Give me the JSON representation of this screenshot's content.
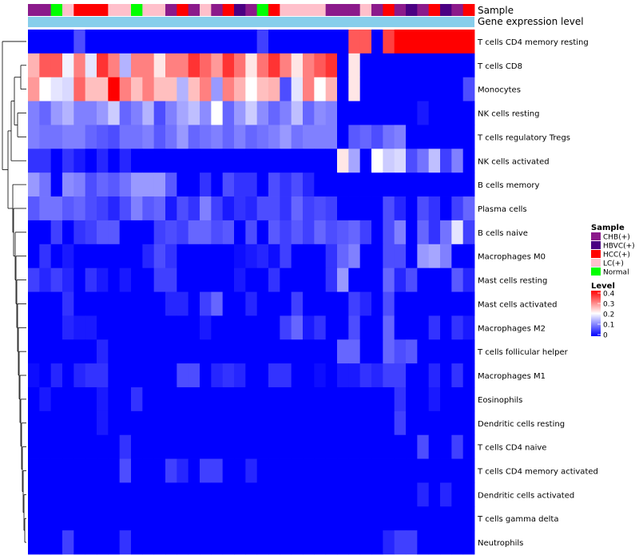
{
  "chart_data": {
    "type": "heatmap",
    "title": "",
    "annotation_tracks": [
      {
        "name": "Sample"
      },
      {
        "name": "Gene expression level"
      }
    ],
    "sample_groups": [
      "CHB(+)",
      "CHB(+)",
      "Normal",
      "LC(+)",
      "HCC(+)",
      "HCC(+)",
      "HCC(+)",
      "LC(+)",
      "LC(+)",
      "Normal",
      "LC(+)",
      "LC(+)",
      "CHB(+)",
      "HCC(+)",
      "CHB(+)",
      "LC(+)",
      "CHB(+)",
      "HCC(+)",
      "HBVC(+)",
      "CHB(+)",
      "Normal",
      "HCC(+)",
      "LC(+)",
      "LC(+)",
      "LC(+)",
      "LC(+)",
      "CHB(+)",
      "CHB(+)",
      "CHB(+)",
      "LC(+)",
      "CHB(+)",
      "HCC(+)",
      "CHB(+)",
      "HBVC(+)",
      "CHB(+)",
      "HCC(+)",
      "HBVC(+)",
      "CHB(+)",
      "HCC(+)"
    ],
    "gene_expression_level_track": "single level (light blue) across all samples",
    "rows": [
      "T cells CD4 memory resting",
      "T cells CD8",
      "Monocytes",
      "NK cells resting",
      "T cells regulatory  Tregs",
      "NK cells activated",
      "B cells memory",
      "Plasma cells",
      "B cells naive",
      "Macrophages M0",
      "Mast cells resting",
      "Mast cells activated",
      "Macrophages M2",
      "T cells follicular helper",
      "Macrophages M1",
      "Eosinophils",
      "Dendritic cells resting",
      "T cells CD4 naive",
      "T cells CD4 memory activated",
      "Dendritic cells activated",
      "T cells gamma delta",
      "Neutrophils"
    ],
    "values": [
      [
        0,
        0,
        0,
        0,
        0.06,
        0,
        0,
        0,
        0,
        0,
        0,
        0,
        0,
        0,
        0,
        0,
        0,
        0,
        0,
        0,
        0.05,
        0,
        0,
        0,
        0,
        0,
        0,
        0,
        0.33,
        0.33,
        0,
        0.35,
        0.4,
        0.4,
        0.4,
        0.4,
        0.4,
        0.4,
        0.4
      ],
      [
        0.26,
        0.33,
        0.33,
        0.19,
        0.3,
        0.18,
        0.36,
        0.3,
        0.14,
        0.3,
        0.3,
        0.22,
        0.3,
        0.3,
        0.36,
        0.32,
        0.28,
        0.36,
        0.31,
        0.22,
        0.31,
        0.36,
        0.3,
        0.22,
        0.3,
        0.33,
        0.36,
        0,
        0.22,
        0,
        0,
        0,
        0,
        0,
        0,
        0,
        0,
        0,
        0
      ],
      [
        0.28,
        0.2,
        0.18,
        0.17,
        0.32,
        0.25,
        0.25,
        0.4,
        0.3,
        0.25,
        0.3,
        0.25,
        0.25,
        0.14,
        0.25,
        0.3,
        0.12,
        0.3,
        0.26,
        0.2,
        0.25,
        0.26,
        0.06,
        0.18,
        0.3,
        0.2,
        0.26,
        0,
        0.22,
        0,
        0,
        0,
        0,
        0,
        0,
        0,
        0,
        0,
        0.06
      ],
      [
        0.1,
        0.08,
        0.12,
        0.14,
        0.1,
        0.1,
        0.12,
        0.16,
        0.08,
        0.1,
        0.14,
        0.06,
        0.1,
        0.13,
        0.15,
        0.11,
        0.2,
        0.08,
        0.12,
        0.16,
        0.11,
        0.08,
        0.1,
        0.15,
        0.08,
        0.11,
        0.1,
        0,
        0,
        0,
        0,
        0,
        0,
        0,
        0.02,
        0,
        0,
        0,
        0
      ],
      [
        0.1,
        0.09,
        0.09,
        0.1,
        0.1,
        0.08,
        0.07,
        0.06,
        0.09,
        0.09,
        0.1,
        0.07,
        0.09,
        0.12,
        0.08,
        0.09,
        0.1,
        0.08,
        0.1,
        0.08,
        0.09,
        0.1,
        0.12,
        0.09,
        0.1,
        0.1,
        0.1,
        0,
        0.07,
        0.08,
        0.06,
        0.09,
        0.1,
        0,
        0,
        0,
        0,
        0,
        0
      ],
      [
        0.04,
        0.04,
        0,
        0.04,
        0.02,
        0,
        0.03,
        0,
        0.03,
        0,
        0,
        0,
        0,
        0,
        0,
        0,
        0,
        0,
        0,
        0,
        0,
        0,
        0,
        0,
        0,
        0,
        0,
        0.22,
        0.13,
        0,
        0.2,
        0.16,
        0.17,
        0.06,
        0.09,
        0.15,
        0.05,
        0.1,
        0
      ],
      [
        0.12,
        0.09,
        0,
        0.11,
        0.1,
        0.06,
        0.08,
        0.07,
        0.09,
        0.12,
        0.12,
        0.12,
        0.07,
        0,
        0,
        0.04,
        0,
        0.06,
        0.04,
        0.04,
        0,
        0.06,
        0.04,
        0.06,
        0.03,
        0,
        0,
        0,
        0,
        0,
        0,
        0,
        0,
        0,
        0,
        0,
        0,
        0,
        0
      ],
      [
        0.07,
        0.09,
        0.09,
        0.07,
        0.08,
        0.06,
        0.05,
        0.03,
        0.06,
        0.1,
        0.07,
        0.08,
        0.02,
        0.06,
        0.04,
        0.1,
        0.05,
        0.02,
        0.04,
        0.03,
        0.06,
        0.06,
        0.04,
        0.08,
        0.05,
        0.06,
        0.05,
        0,
        0,
        0,
        0,
        0.06,
        0.03,
        0,
        0.06,
        0.04,
        0,
        0.05,
        0.08
      ],
      [
        0,
        0,
        0.05,
        0,
        0.04,
        0.05,
        0.07,
        0.07,
        0,
        0,
        0,
        0.05,
        0.06,
        0.05,
        0.08,
        0.08,
        0.06,
        0.07,
        0,
        0.06,
        0,
        0.07,
        0.05,
        0.07,
        0.05,
        0.08,
        0.06,
        0.07,
        0.08,
        0.05,
        0,
        0.06,
        0.1,
        0,
        0.08,
        0.04,
        0.09,
        0.18,
        0.05
      ],
      [
        0,
        0.04,
        0,
        0.02,
        0,
        0,
        0,
        0,
        0,
        0,
        0.03,
        0.06,
        0.04,
        0,
        0,
        0,
        0,
        0,
        0.01,
        0.02,
        0.03,
        0.01,
        0.05,
        0,
        0,
        0,
        0.04,
        0.08,
        0.1,
        0,
        0,
        0.06,
        0.06,
        0,
        0.12,
        0.13,
        0.1,
        0,
        0
      ],
      [
        0.05,
        0.03,
        0.05,
        0.03,
        0,
        0.04,
        0.02,
        0,
        0.02,
        0,
        0,
        0.05,
        0.05,
        0,
        0,
        0,
        0,
        0,
        0.02,
        0,
        0,
        0.04,
        0,
        0,
        0,
        0,
        0.04,
        0.12,
        0,
        0,
        0,
        0.08,
        0.03,
        0.06,
        0,
        0,
        0,
        0.07,
        0.03
      ],
      [
        0,
        0,
        0,
        0.04,
        0,
        0,
        0,
        0,
        0,
        0,
        0,
        0,
        0.03,
        0.03,
        0,
        0.05,
        0.08,
        0,
        0,
        0.03,
        0,
        0,
        0,
        0.05,
        0,
        0,
        0,
        0,
        0.05,
        0.03,
        0,
        0.06,
        0,
        0,
        0,
        0,
        0,
        0,
        0
      ],
      [
        0,
        0,
        0,
        0.03,
        0.02,
        0.02,
        0,
        0,
        0,
        0,
        0,
        0,
        0,
        0,
        0,
        0.02,
        0,
        0,
        0,
        0,
        0,
        0,
        0.05,
        0.08,
        0.02,
        0.04,
        0,
        0,
        0.06,
        0,
        0,
        0.08,
        0,
        0,
        0,
        0.04,
        0,
        0.04,
        0.02
      ],
      [
        0,
        0,
        0,
        0,
        0,
        0,
        0.03,
        0,
        0,
        0,
        0,
        0,
        0,
        0,
        0,
        0,
        0,
        0,
        0,
        0,
        0,
        0,
        0,
        0,
        0,
        0,
        0,
        0.08,
        0.08,
        0,
        0,
        0.08,
        0.06,
        0.07,
        0,
        0,
        0,
        0,
        0
      ],
      [
        0.01,
        0,
        0.03,
        0,
        0.03,
        0.04,
        0.04,
        0,
        0,
        0,
        0,
        0,
        0,
        0.06,
        0.06,
        0,
        0.03,
        0.04,
        0.03,
        0,
        0,
        0.04,
        0.04,
        0,
        0,
        0.01,
        0,
        0.02,
        0.02,
        0.04,
        0.03,
        0.05,
        0.05,
        0,
        0,
        0.03,
        0,
        0.04,
        0
      ],
      [
        0,
        0.02,
        0,
        0,
        0,
        0,
        0.02,
        0,
        0,
        0.04,
        0,
        0,
        0,
        0,
        0,
        0,
        0,
        0,
        0,
        0,
        0,
        0,
        0,
        0,
        0,
        0,
        0,
        0,
        0,
        0,
        0,
        0,
        0.04,
        0,
        0,
        0.02,
        0,
        0,
        0
      ],
      [
        0,
        0,
        0,
        0,
        0,
        0,
        0.02,
        0,
        0,
        0,
        0,
        0,
        0,
        0,
        0,
        0,
        0,
        0,
        0,
        0,
        0,
        0,
        0,
        0,
        0,
        0,
        0,
        0,
        0,
        0,
        0,
        0,
        0.05,
        0,
        0,
        0,
        0,
        0,
        0
      ],
      [
        0,
        0,
        0,
        0,
        0,
        0,
        0,
        0,
        0.04,
        0,
        0,
        0,
        0,
        0,
        0,
        0,
        0,
        0,
        0,
        0,
        0,
        0,
        0,
        0,
        0,
        0,
        0,
        0,
        0,
        0,
        0,
        0,
        0,
        0,
        0.06,
        0,
        0,
        0.05,
        0
      ],
      [
        0,
        0,
        0,
        0,
        0,
        0,
        0,
        0,
        0.06,
        0,
        0,
        0,
        0.05,
        0.03,
        0,
        0.05,
        0.05,
        0,
        0,
        0.03,
        0,
        0,
        0,
        0,
        0,
        0,
        0,
        0,
        0,
        0,
        0,
        0,
        0,
        0,
        0,
        0,
        0,
        0,
        0
      ],
      [
        0,
        0,
        0,
        0,
        0,
        0,
        0,
        0,
        0,
        0,
        0,
        0,
        0,
        0,
        0,
        0,
        0,
        0,
        0,
        0,
        0,
        0,
        0,
        0,
        0,
        0,
        0,
        0,
        0,
        0,
        0,
        0,
        0,
        0,
        0.03,
        0,
        0.03,
        0,
        0
      ],
      [
        0,
        0,
        0,
        0,
        0,
        0,
        0,
        0,
        0,
        0,
        0,
        0,
        0,
        0,
        0,
        0,
        0,
        0,
        0,
        0,
        0,
        0,
        0,
        0,
        0,
        0,
        0,
        0,
        0,
        0,
        0,
        0,
        0,
        0,
        0,
        0,
        0,
        0,
        0
      ],
      [
        0,
        0,
        0,
        0.05,
        0,
        0,
        0,
        0,
        0.04,
        0,
        0,
        0,
        0,
        0,
        0,
        0,
        0,
        0,
        0,
        0,
        0,
        0,
        0,
        0,
        0,
        0,
        0,
        0,
        0,
        0,
        0,
        0.03,
        0.05,
        0.05,
        0,
        0,
        0,
        0,
        0
      ]
    ],
    "color_scale": {
      "min": 0,
      "max": 0.4,
      "stops": [
        {
          "value": 0,
          "color": "#0000ff"
        },
        {
          "value": 0.2,
          "color": "#ffffff"
        },
        {
          "value": 0.4,
          "color": "#ff0000"
        }
      ]
    },
    "legend": {
      "sample_title": "Sample",
      "sample_items": [
        {
          "label": "CHB(+)",
          "color": "#8b1a8b"
        },
        {
          "label": "HBVC(+)",
          "color": "#4b0082"
        },
        {
          "label": "HCC(+)",
          "color": "#ff0000"
        },
        {
          "label": "LC(+)",
          "color": "#ffc0cb"
        },
        {
          "label": "Normal",
          "color": "#00ff00"
        }
      ],
      "level_title": "Level",
      "level_ticks": [
        "0.4",
        "0.3",
        "0.2",
        "0.1",
        "0"
      ],
      "placement": "right"
    },
    "gene_expression_level_color": "#87ceeb",
    "dendrogram": "row clustering on left"
  }
}
